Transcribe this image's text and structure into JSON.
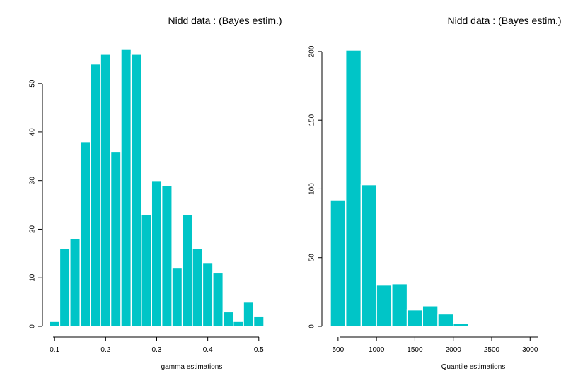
{
  "colors": {
    "bar_fill": "#00C5C7",
    "bar_stroke": "#ffffff",
    "axis": "#000000"
  },
  "chart_data": [
    {
      "type": "bar",
      "title": "Nidd data :  (Bayes estim.)",
      "xlabel": "gamma estimations",
      "ylabel": "",
      "bin_edges": [
        0.09,
        0.11,
        0.13,
        0.15,
        0.17,
        0.19,
        0.21,
        0.23,
        0.25,
        0.27,
        0.29,
        0.31,
        0.33,
        0.35,
        0.37,
        0.39,
        0.41,
        0.43,
        0.45,
        0.47,
        0.49,
        0.51
      ],
      "values": [
        1,
        16,
        18,
        38,
        54,
        56,
        36,
        57,
        56,
        23,
        30,
        29,
        12,
        23,
        16,
        13,
        11,
        3,
        1,
        5,
        2
      ],
      "xticks": [
        0.1,
        0.2,
        0.3,
        0.4,
        0.5
      ],
      "xtick_labels": [
        "0.1",
        "0.2",
        "0.3",
        "0.4",
        "0.5"
      ],
      "yticks": [
        0,
        10,
        20,
        30,
        40,
        50
      ],
      "ytick_labels": [
        "0",
        "10",
        "20",
        "30",
        "40",
        "50"
      ],
      "xlim": [
        0.09,
        0.51
      ],
      "ylim": [
        0,
        57
      ],
      "grid": false
    },
    {
      "type": "bar",
      "title": "Nidd data : (Bayes estim.)",
      "xlabel": "Quantile estimations",
      "ylabel": "",
      "bin_edges": [
        400,
        600,
        800,
        1000,
        1200,
        1400,
        1600,
        1800,
        2000,
        2200,
        2400,
        2600,
        2800,
        3000,
        3200
      ],
      "values": [
        92,
        201,
        103,
        30,
        31,
        12,
        15,
        9,
        2,
        0.5,
        0.5,
        0.5,
        0.5,
        0.5
      ],
      "xticks": [
        500,
        1000,
        1500,
        2000,
        2500,
        3000
      ],
      "xtick_labels": [
        "500",
        "1000",
        "1500",
        "2000",
        "2500",
        "3000"
      ],
      "yticks": [
        0,
        50,
        100,
        150,
        200
      ],
      "ytick_labels": [
        "0",
        "50",
        "100",
        "150",
        "200"
      ],
      "xlim": [
        400,
        3200
      ],
      "ylim": [
        0,
        201
      ],
      "grid": false
    }
  ]
}
